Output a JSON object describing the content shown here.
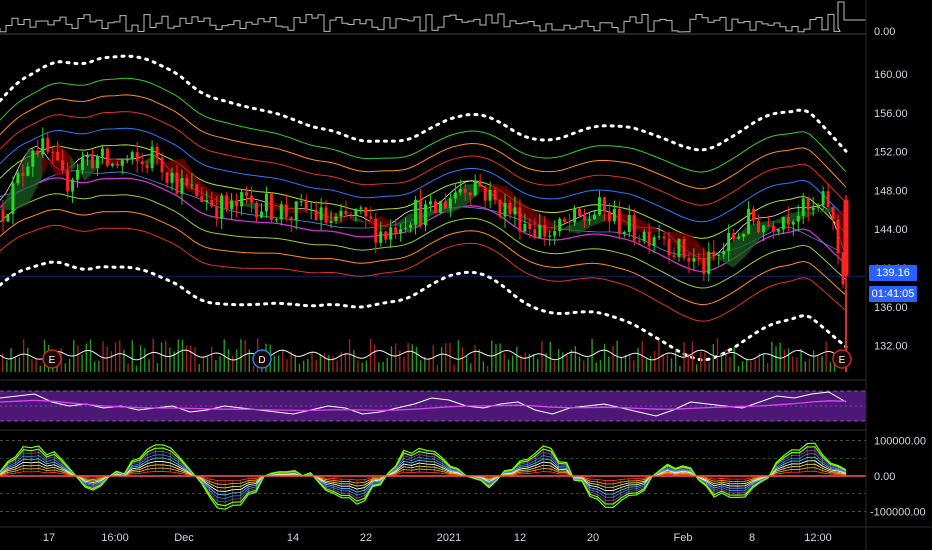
{
  "chart_data": [
    {
      "type": "candlestick",
      "panel": "price",
      "y_ticks": [
        "160.00",
        "156.00",
        "152.00",
        "148.00",
        "144.00",
        "140.00",
        "136.00",
        "132.00"
      ],
      "ylim": [
        130.0,
        163.0
      ],
      "last_price": "139.16",
      "countdown": "01:41:05",
      "event_markers": [
        "E",
        "D",
        "E"
      ],
      "x_ticks": [
        "17",
        "16:00",
        "Dec",
        "14",
        "22",
        "2021",
        "12",
        "20",
        "Feb",
        "8",
        "12:00"
      ],
      "trend_closes": [
        146.0,
        149.0,
        153.0,
        151.5,
        148.5,
        151.0,
        151.5,
        150.5,
        151.0,
        150.5,
        152.0,
        149.5,
        148.0,
        147.5,
        146.5,
        146.0,
        147.0,
        146.5,
        146.0,
        145.5,
        146.0,
        145.0,
        144.5,
        145.5,
        144.5,
        143.5,
        145.0,
        146.0,
        145.5,
        147.0,
        148.5,
        149.0,
        147.0,
        146.0,
        145.0,
        144.0,
        143.5,
        144.5,
        145.0,
        146.0,
        145.0,
        144.0,
        143.5,
        144.0,
        142.0,
        141.0,
        140.0,
        141.5,
        143.5,
        145.0,
        144.5,
        145.5,
        146.0,
        145.5,
        147.0,
        139.2
      ]
    },
    {
      "type": "volume",
      "panel": "volume_top",
      "y_ticks": [
        "0.00"
      ]
    },
    {
      "type": "line",
      "panel": "oscillator",
      "series": [
        {
          "values": [
            0.7,
            0.75,
            0.8,
            0.6,
            0.5,
            0.55,
            0.45,
            0.5,
            0.4,
            0.45,
            0.5,
            0.35,
            0.4,
            0.5,
            0.45,
            0.4,
            0.35,
            0.3,
            0.4,
            0.5,
            0.45,
            0.3,
            0.35,
            0.45,
            0.55,
            0.7,
            0.65,
            0.5,
            0.45,
            0.55,
            0.6,
            0.4,
            0.3,
            0.45,
            0.5,
            0.55,
            0.45,
            0.35,
            0.25,
            0.4,
            0.6,
            0.55,
            0.5,
            0.45,
            0.6,
            0.75,
            0.7,
            0.8,
            0.85,
            0.6
          ]
        },
        {
          "values": [
            0.6,
            0.62,
            0.64,
            0.62,
            0.58,
            0.54,
            0.5,
            0.48,
            0.46,
            0.45,
            0.45,
            0.44,
            0.43,
            0.42,
            0.42,
            0.41,
            0.4,
            0.39,
            0.39,
            0.4,
            0.41,
            0.4,
            0.39,
            0.4,
            0.42,
            0.45,
            0.48,
            0.5,
            0.5,
            0.51,
            0.52,
            0.5,
            0.47,
            0.46,
            0.46,
            0.47,
            0.46,
            0.44,
            0.42,
            0.42,
            0.44,
            0.46,
            0.48,
            0.49,
            0.5,
            0.53,
            0.56,
            0.6,
            0.63,
            0.62
          ]
        }
      ]
    },
    {
      "type": "line",
      "panel": "ribbon_oscillator",
      "y_ticks": [
        "100000.00",
        "0.00",
        "-100000.00"
      ],
      "ylim": [
        -130000,
        130000
      ]
    }
  ]
}
